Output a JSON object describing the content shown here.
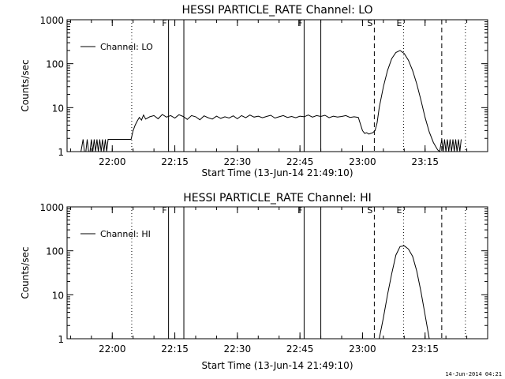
{
  "footer_date": "14-Jun-2014 04:21",
  "chart_data": [
    {
      "type": "line",
      "title": "HESSI PARTICLE_RATE Channel: LO",
      "xlabel": "Start Time (13-Jun-14 21:49:10)",
      "ylabel": "Counts/sec",
      "yscale": "log",
      "ylim": [
        1,
        1000
      ],
      "xlim": [
        "21:49:10",
        "23:30:00"
      ],
      "y_ticks": [
        "1",
        "10",
        "100",
        "1000"
      ],
      "x_ticks": [
        "22:00",
        "22:15",
        "22:30",
        "22:45",
        "23:00",
        "23:15"
      ],
      "legend": {
        "label": "Channel: LO",
        "position": "top-left"
      },
      "markers": [
        {
          "time": "22:13:30",
          "style": "solid",
          "label": "F"
        },
        {
          "time": "22:17:10",
          "style": "solid",
          "label": ""
        },
        {
          "time": "22:46:00",
          "style": "solid",
          "label": "F"
        },
        {
          "time": "22:50:00",
          "style": "solid",
          "label": ""
        },
        {
          "time": "23:02:50",
          "style": "dashed",
          "label": "S"
        },
        {
          "time": "23:19:00",
          "style": "dashed",
          "label": ""
        },
        {
          "time": "22:04:40",
          "style": "dotted",
          "label": ""
        },
        {
          "time": "23:09:50",
          "style": "dotted",
          "label": "E"
        },
        {
          "time": "23:24:40",
          "style": "dotted",
          "label": ""
        }
      ],
      "series": [
        {
          "name": "Channel: LO",
          "x": [
            "21:52:30",
            "21:53:00",
            "21:53:20",
            "21:53:40",
            "21:54:00",
            "21:54:20",
            "21:54:40",
            "21:55:00",
            "21:55:20",
            "21:55:40",
            "21:56:00",
            "21:56:20",
            "21:56:40",
            "21:57:00",
            "21:57:20",
            "21:57:40",
            "21:58:00",
            "21:58:20",
            "21:58:40",
            "21:59:00",
            "21:59:20",
            "21:59:40",
            "22:00:00",
            "22:00:20",
            "22:00:40",
            "22:01:00",
            "22:02:00",
            "22:03:00",
            "22:04:30",
            "22:05:00",
            "22:05:30",
            "22:06:00",
            "22:06:30",
            "22:07:00",
            "22:07:30",
            "22:08:00",
            "22:09:00",
            "22:10:00",
            "22:11:00",
            "22:12:00",
            "22:13:00",
            "22:14:00",
            "22:15:00",
            "22:16:00",
            "22:17:00",
            "22:18:00",
            "22:19:00",
            "22:20:00",
            "22:21:00",
            "22:22:00",
            "22:23:00",
            "22:24:00",
            "22:25:00",
            "22:26:00",
            "22:27:00",
            "22:28:00",
            "22:29:00",
            "22:30:00",
            "22:31:00",
            "22:32:00",
            "22:33:00",
            "22:34:00",
            "22:35:00",
            "22:36:00",
            "22:37:00",
            "22:38:00",
            "22:39:00",
            "22:40:00",
            "22:41:00",
            "22:42:00",
            "22:43:00",
            "22:44:00",
            "22:45:00",
            "22:46:00",
            "22:47:00",
            "22:48:00",
            "22:49:00",
            "22:50:00",
            "22:51:00",
            "22:52:00",
            "22:53:00",
            "22:54:00",
            "22:55:00",
            "22:56:00",
            "22:57:00",
            "22:58:00",
            "22:59:00",
            "23:00:00",
            "23:00:30",
            "23:01:00",
            "23:01:30",
            "23:02:00",
            "23:02:30",
            "23:03:00",
            "23:03:30",
            "23:04:00",
            "23:05:00",
            "23:06:00",
            "23:07:00",
            "23:08:00",
            "23:09:00",
            "23:10:00",
            "23:11:00",
            "23:12:00",
            "23:13:00",
            "23:14:00",
            "23:15:00",
            "23:16:00",
            "23:17:00",
            "23:18:00",
            "23:18:30",
            "23:19:00",
            "23:19:20",
            "23:19:40",
            "23:20:00",
            "23:20:20",
            "23:20:40",
            "23:21:00",
            "23:21:20",
            "23:21:40",
            "23:22:00",
            "23:22:20",
            "23:22:40",
            "23:23:00",
            "23:23:20",
            "23:23:40"
          ],
          "y": [
            1,
            1.9,
            1,
            1,
            1.9,
            1,
            1,
            1.9,
            1,
            1.9,
            1,
            1.9,
            1,
            1.9,
            1,
            1.9,
            1,
            1.9,
            1,
            1.9,
            1.9,
            1.9,
            1.9,
            1.9,
            1.9,
            1.9,
            1.9,
            1.9,
            1.9,
            3,
            4,
            5,
            6,
            5.2,
            6.8,
            5.5,
            6.2,
            6.6,
            5.6,
            7,
            6.1,
            6.6,
            5.8,
            6.9,
            6.3,
            5.4,
            6.6,
            6.2,
            5.3,
            6.5,
            5.9,
            5.5,
            6.4,
            5.7,
            6.2,
            5.8,
            6.5,
            5.6,
            6.6,
            5.9,
            6.8,
            6.1,
            6.4,
            5.9,
            6.3,
            6.7,
            5.8,
            6.2,
            6.6,
            6,
            6.3,
            5.9,
            6.4,
            6.2,
            6.8,
            6.1,
            6.6,
            6.3,
            6.7,
            5.9,
            6.4,
            6.1,
            6.3,
            6.6,
            6,
            6.2,
            6,
            3,
            2.6,
            2.7,
            2.5,
            2.6,
            2.7,
            3,
            4.5,
            10,
            30,
            70,
            130,
            180,
            200,
            170,
            120,
            70,
            35,
            15,
            6,
            2.8,
            1.6,
            1.1,
            1,
            1.9,
            1,
            1.9,
            1,
            1.9,
            1,
            1.9,
            1,
            1.9,
            1,
            1.9,
            1,
            1.9,
            1,
            1.9
          ]
        }
      ]
    },
    {
      "type": "line",
      "title": "HESSI PARTICLE_RATE Channel: HI",
      "xlabel": "Start Time (13-Jun-14 21:49:10)",
      "ylabel": "Counts/sec",
      "yscale": "log",
      "ylim": [
        1,
        1000
      ],
      "xlim": [
        "21:49:10",
        "23:30:00"
      ],
      "y_ticks": [
        "1",
        "10",
        "100",
        "1000"
      ],
      "x_ticks": [
        "22:00",
        "22:15",
        "22:30",
        "22:45",
        "23:00",
        "23:15"
      ],
      "legend": {
        "label": "Channel: HI",
        "position": "top-left"
      },
      "markers": [
        {
          "time": "22:13:30",
          "style": "solid",
          "label": "F"
        },
        {
          "time": "22:17:10",
          "style": "solid",
          "label": ""
        },
        {
          "time": "22:46:00",
          "style": "solid",
          "label": "F"
        },
        {
          "time": "22:50:00",
          "style": "solid",
          "label": ""
        },
        {
          "time": "23:02:50",
          "style": "dashed",
          "label": "S"
        },
        {
          "time": "23:19:00",
          "style": "dashed",
          "label": ""
        },
        {
          "time": "22:04:40",
          "style": "dotted",
          "label": ""
        },
        {
          "time": "23:09:50",
          "style": "dotted",
          "label": "E"
        },
        {
          "time": "23:24:40",
          "style": "dotted",
          "label": ""
        }
      ],
      "series": [
        {
          "name": "Channel: HI",
          "x": [
            "23:04:00",
            "23:05:00",
            "23:06:00",
            "23:07:00",
            "23:08:00",
            "23:09:00",
            "23:10:00",
            "23:11:00",
            "23:12:00",
            "23:13:00",
            "23:14:00",
            "23:15:00",
            "23:16:00"
          ],
          "y": [
            1,
            3,
            10,
            30,
            80,
            125,
            130,
            110,
            75,
            35,
            12,
            3.5,
            1
          ]
        }
      ]
    }
  ]
}
